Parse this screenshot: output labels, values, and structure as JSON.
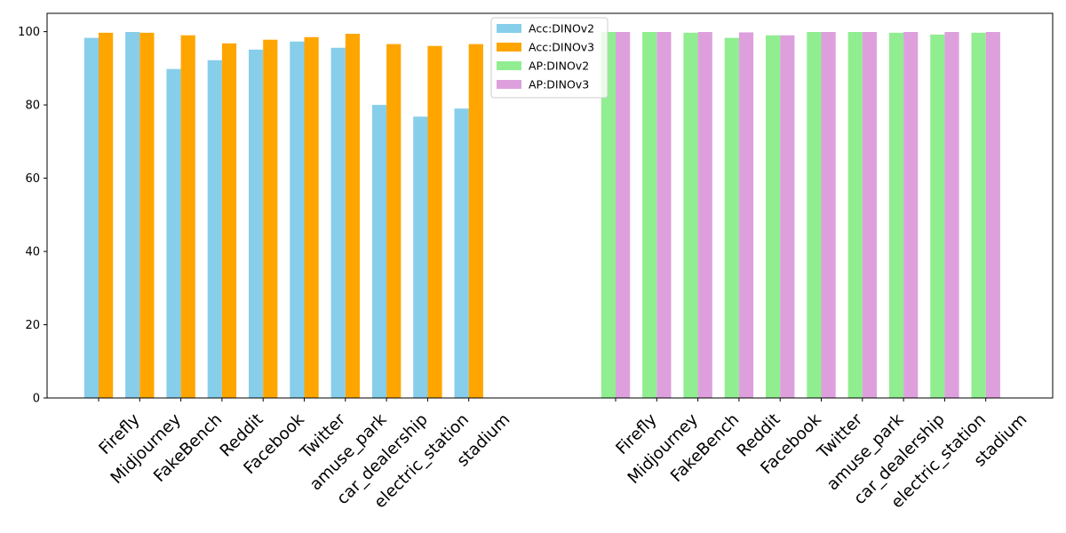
{
  "chart_data": {
    "type": "bar",
    "title": "",
    "xlabel": "",
    "ylabel": "",
    "ylim": [
      0,
      105
    ],
    "yticks": [
      0,
      20,
      40,
      60,
      80,
      100
    ],
    "grid": false,
    "legend_position": "top-center",
    "groups": [
      {
        "name": "Acc",
        "categories": [
          "Firefly",
          "Midjourney",
          "FakeBench",
          "Reddit",
          "Facebook",
          "Twitter",
          "amuse_park",
          "car_dealership",
          "electric_station",
          "stadium"
        ],
        "series": [
          {
            "name": "Acc:DINOv2",
            "color": "#87ceeb",
            "values": [
              98.3,
              99.9,
              89.8,
              92.2,
              95.1,
              97.3,
              95.6,
              80.0,
              76.8,
              79.0
            ]
          },
          {
            "name": "Acc:DINOv3",
            "color": "#ffa500",
            "values": [
              99.7,
              99.7,
              99.0,
              96.8,
              97.8,
              98.5,
              99.4,
              96.6,
              96.1,
              96.6
            ]
          }
        ]
      },
      {
        "name": "AP",
        "categories": [
          "Firefly",
          "Midjourney",
          "FakeBench",
          "Reddit",
          "Facebook",
          "Twitter",
          "amuse_park",
          "car_dealership",
          "electric_station",
          "stadium"
        ],
        "series": [
          {
            "name": "AP:DINOv2",
            "color": "#90ee90",
            "values": [
              99.9,
              99.9,
              99.7,
              98.3,
              99.0,
              99.9,
              99.9,
              99.7,
              99.2,
              99.7
            ]
          },
          {
            "name": "AP:DINOv3",
            "color": "#dda0dd",
            "values": [
              99.9,
              99.9,
              99.9,
              99.8,
              99.0,
              99.9,
              99.9,
              99.9,
              99.9,
              99.9
            ]
          }
        ]
      }
    ],
    "legend": [
      "Acc:DINOv2",
      "Acc:DINOv3",
      "AP:DINOv2",
      "AP:DINOv3"
    ]
  }
}
